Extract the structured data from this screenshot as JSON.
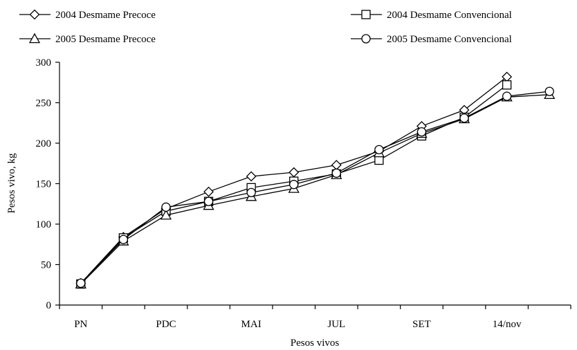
{
  "chart_data": {
    "type": "line",
    "title": "",
    "xlabel": "Pesos vivos",
    "ylabel": "Pesos vivo, kg",
    "ylim": [
      0,
      300
    ],
    "yticks": [
      0,
      50,
      100,
      150,
      200,
      250,
      300
    ],
    "categories": [
      "PN",
      "",
      "PDC",
      "",
      "MAI",
      "",
      "JUL",
      "",
      "SET",
      "",
      "14/nov",
      ""
    ],
    "grid": false,
    "legend_position": "top",
    "series": [
      {
        "name": "2004 Desmame Precoce",
        "marker": "diamond",
        "values": [
          27,
          84,
          119,
          140,
          159,
          164,
          173,
          190,
          221,
          241,
          282,
          null
        ]
      },
      {
        "name": "2004 Desmame Convencional",
        "marker": "square",
        "values": [
          26,
          83,
          116,
          128,
          145,
          153,
          162,
          179,
          209,
          232,
          272,
          null
        ]
      },
      {
        "name": "2005 Desmame Precoce",
        "marker": "triangle",
        "values": [
          26,
          79,
          111,
          123,
          134,
          144,
          161,
          188,
          212,
          230,
          257,
          260
        ]
      },
      {
        "name": "2005 Desmame Convencional",
        "marker": "circle",
        "values": [
          27,
          81,
          121,
          128,
          139,
          149,
          163,
          192,
          214,
          231,
          258,
          264
        ]
      }
    ]
  }
}
